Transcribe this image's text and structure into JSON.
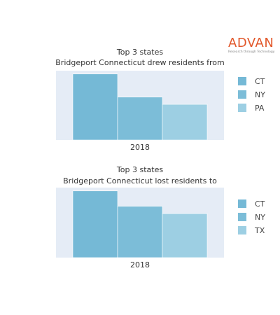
{
  "logo": {
    "word": "ADVAN",
    "tagline": "Research through Technology",
    "color": "#e2582b"
  },
  "chart_data": [
    {
      "type": "bar",
      "title": "Top 3 states",
      "subtitle": "Bridgeport Connecticut drew residents from",
      "categories": [
        "2018"
      ],
      "series": [
        {
          "name": "CT",
          "values": [
            100
          ],
          "color": "#75b9d6"
        },
        {
          "name": "NY",
          "values": [
            65
          ],
          "color": "#7cbdd8"
        },
        {
          "name": "PA",
          "values": [
            54
          ],
          "color": "#9dcfe3"
        }
      ],
      "ylim": [
        0,
        105
      ],
      "xlabel": "",
      "ylabel": "",
      "grid": false,
      "legend": "right",
      "plot_background": "#e5ecf6"
    },
    {
      "type": "bar",
      "title": "Top 3 states",
      "subtitle": "Bridgeport Connecticut lost residents to",
      "categories": [
        "2018"
      ],
      "series": [
        {
          "name": "CT",
          "values": [
            100
          ],
          "color": "#75b9d6"
        },
        {
          "name": "NY",
          "values": [
            77
          ],
          "color": "#7cbdd8"
        },
        {
          "name": "TX",
          "values": [
            66
          ],
          "color": "#9dcfe3"
        }
      ],
      "ylim": [
        0,
        105
      ],
      "xlabel": "",
      "ylabel": "",
      "grid": false,
      "legend": "right",
      "plot_background": "#e5ecf6"
    }
  ]
}
